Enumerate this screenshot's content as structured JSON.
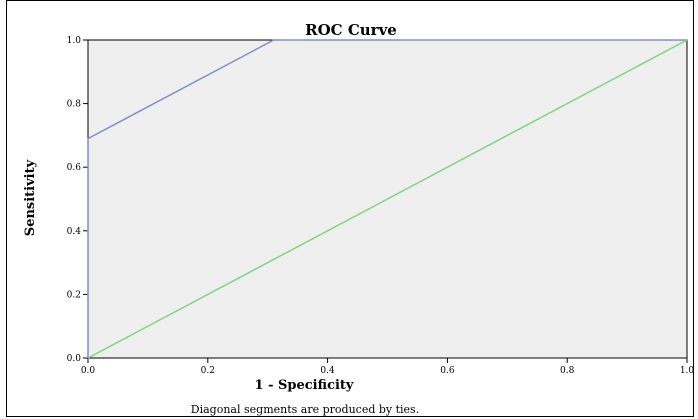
{
  "chart_data": {
    "type": "line",
    "title": "ROC Curve",
    "xlabel": "1 - Specificity",
    "ylabel": "Sensitivity",
    "footnote": "Diagonal segments are produced by ties.",
    "xlim": [
      0,
      1
    ],
    "ylim": [
      0,
      1
    ],
    "x_ticks": [
      "0.0",
      "0.2",
      "0.4",
      "0.6",
      "0.8",
      "1.0"
    ],
    "y_ticks": [
      "0.0",
      "0.2",
      "0.4",
      "0.6",
      "0.8",
      "1.0"
    ],
    "grid": false,
    "plot_background": "#efefef",
    "series": [
      {
        "color": "#7f8fcf",
        "points": [
          [
            0,
            0
          ],
          [
            0,
            0.69
          ],
          [
            0.31,
            1.0
          ],
          [
            1.0,
            1.0
          ]
        ]
      },
      {
        "color": "#7fd67f",
        "points": [
          [
            0,
            0
          ],
          [
            1,
            1
          ]
        ]
      }
    ]
  }
}
